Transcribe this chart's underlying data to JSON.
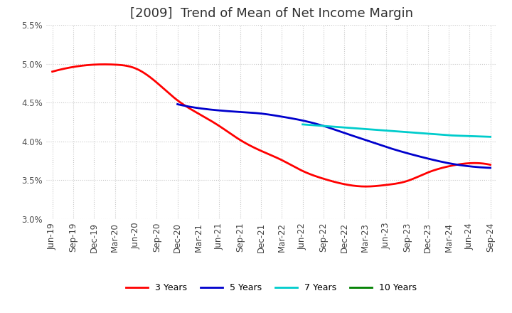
{
  "title": "[2009]  Trend of Mean of Net Income Margin",
  "ylim": [
    0.03,
    0.055
  ],
  "yticks": [
    0.03,
    0.035,
    0.04,
    0.045,
    0.05,
    0.055
  ],
  "ytick_labels": [
    "3.0%",
    "3.5%",
    "4.0%",
    "4.5%",
    "5.0%",
    "5.5%"
  ],
  "x_labels": [
    "Jun-19",
    "Sep-19",
    "Dec-19",
    "Mar-20",
    "Jun-20",
    "Sep-20",
    "Dec-20",
    "Mar-21",
    "Jun-21",
    "Sep-21",
    "Dec-21",
    "Mar-22",
    "Jun-22",
    "Sep-22",
    "Dec-22",
    "Mar-23",
    "Jun-23",
    "Sep-23",
    "Dec-23",
    "Mar-24",
    "Jun-24",
    "Sep-24"
  ],
  "series": {
    "3 Years": {
      "color": "#ff0000",
      "values": [
        0.049,
        0.0496,
        0.0499,
        0.0499,
        0.0494,
        0.0476,
        0.0453,
        0.0436,
        0.042,
        0.0402,
        0.0388,
        0.0376,
        0.0362,
        0.0352,
        0.0345,
        0.0342,
        0.0344,
        0.0349,
        0.036,
        0.0368,
        0.0372,
        0.037
      ]
    },
    "5 Years": {
      "color": "#0000cc",
      "values": [
        null,
        null,
        null,
        null,
        null,
        null,
        0.0448,
        0.0443,
        0.044,
        0.0438,
        0.0436,
        0.0432,
        0.0427,
        0.042,
        0.0411,
        0.0402,
        0.0393,
        0.0385,
        0.0378,
        0.0372,
        0.0368,
        0.0366
      ]
    },
    "7 Years": {
      "color": "#00cccc",
      "values": [
        null,
        null,
        null,
        null,
        null,
        null,
        null,
        null,
        null,
        null,
        null,
        null,
        0.0422,
        0.042,
        0.0418,
        0.0416,
        0.0414,
        0.0412,
        0.041,
        0.0408,
        0.0407,
        0.0406
      ]
    },
    "10 Years": {
      "color": "#008000",
      "values": [
        null,
        null,
        null,
        null,
        null,
        null,
        null,
        null,
        null,
        null,
        null,
        null,
        null,
        null,
        null,
        null,
        null,
        null,
        null,
        null,
        null,
        null
      ]
    }
  },
  "background_color": "#ffffff",
  "grid_color": "#c8c8c8",
  "title_fontsize": 13,
  "tick_fontsize": 8.5,
  "legend_fontsize": 9,
  "line_width": 2.0
}
